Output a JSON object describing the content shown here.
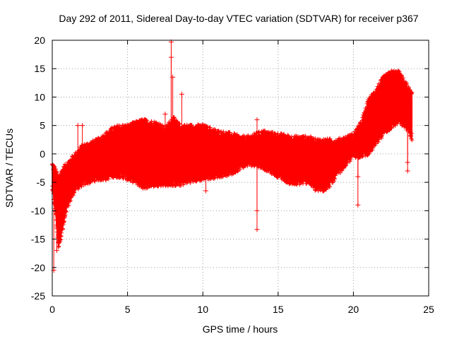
{
  "chart_data": {
    "type": "scatter",
    "title": "Day 292 of 2011, Sidereal Day-to-day VTEC variation (SDTVAR) for receiver p367",
    "xlabel": "GPS time / hours",
    "ylabel": "SDTVAR / TECUs",
    "xlim": [
      0,
      25
    ],
    "ylim": [
      -25,
      20
    ],
    "xticks": [
      0,
      5,
      10,
      15,
      20,
      25
    ],
    "xtick_labels": [
      "0",
      "5",
      "10",
      "15",
      "20",
      "25"
    ],
    "yticks": [
      -25,
      -20,
      -15,
      -10,
      -5,
      0,
      5,
      10,
      15,
      20
    ],
    "ytick_labels": [
      "-25",
      "-20",
      "-15",
      "-10",
      "-5",
      "0",
      "5",
      "10",
      "15",
      "20"
    ],
    "grid": true,
    "marker": "+",
    "color": "#ff0000",
    "series": [
      {
        "name": "SDTVAR",
        "envelope": {
          "x": [
            0.0,
            0.2,
            0.4,
            0.7,
            1.0,
            1.5,
            2.0,
            3.0,
            3.5,
            4.0,
            4.5,
            5.0,
            5.5,
            6.0,
            7.0,
            7.5,
            8.0,
            8.5,
            9.0,
            10.0,
            11.0,
            12.0,
            12.5,
            13.0,
            13.5,
            14.0,
            15.0,
            16.0,
            17.0,
            17.5,
            18.0,
            18.5,
            19.0,
            19.5,
            20.0,
            20.5,
            21.0,
            21.5,
            22.0,
            22.5,
            23.0,
            23.5,
            23.9
          ],
          "upper": [
            -2,
            -3,
            -4.5,
            -3,
            -2,
            -0.5,
            1,
            2,
            3,
            4,
            4.5,
            4.5,
            5,
            5.5,
            5,
            4,
            6,
            4.5,
            4.5,
            4.5,
            3.5,
            3,
            2.5,
            2.5,
            3,
            3.5,
            3,
            2.5,
            2.5,
            2,
            2,
            2,
            2,
            2.5,
            3,
            5,
            9,
            11,
            13,
            14,
            14,
            12,
            10
          ],
          "lower": [
            -6,
            -10,
            -16,
            -13,
            -9,
            -6,
            -5,
            -4,
            -4,
            -3.5,
            -3.5,
            -4,
            -4.5,
            -5.5,
            -5,
            -5,
            -5,
            -5,
            -4.5,
            -4,
            -3.5,
            -3,
            -2,
            -1.5,
            -1.5,
            -2,
            -3.5,
            -5,
            -4.5,
            -6,
            -6,
            -5,
            -3,
            -1.5,
            0,
            0,
            0.5,
            2,
            4,
            5,
            6,
            5,
            3
          ]
        },
        "outliers": [
          {
            "x": 0.1,
            "y": -20.5
          },
          {
            "x": 0.3,
            "y": -17
          },
          {
            "x": 0.5,
            "y": -15
          },
          {
            "x": 1.7,
            "y": 5
          },
          {
            "x": 2.0,
            "y": 5
          },
          {
            "x": 7.5,
            "y": 7
          },
          {
            "x": 7.9,
            "y": 19.7
          },
          {
            "x": 7.9,
            "y": 17
          },
          {
            "x": 8.0,
            "y": 13.5
          },
          {
            "x": 8.6,
            "y": 10.5
          },
          {
            "x": 10.2,
            "y": -6.5
          },
          {
            "x": 13.6,
            "y": 6
          },
          {
            "x": 13.6,
            "y": -10
          },
          {
            "x": 13.6,
            "y": -13.3
          },
          {
            "x": 20.3,
            "y": -9
          },
          {
            "x": 20.3,
            "y": -4
          },
          {
            "x": 23.6,
            "y": -3
          },
          {
            "x": 23.6,
            "y": -1.5
          }
        ]
      }
    ]
  }
}
